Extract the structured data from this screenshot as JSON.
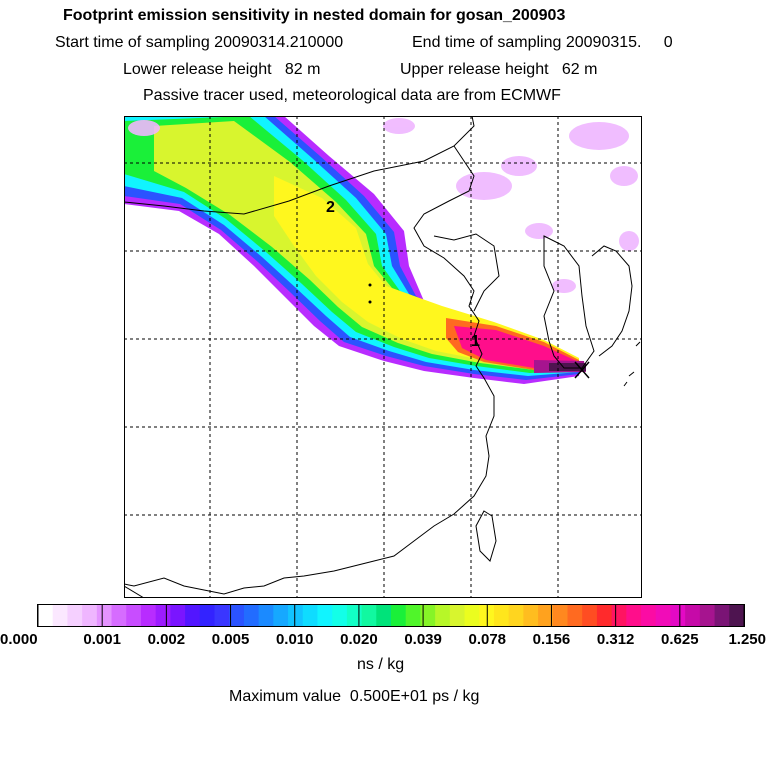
{
  "header": {
    "title": "Footprint emission sensitivity in nested domain for gosan_200903",
    "start_label": "Start time of sampling 20090314.210000",
    "end_label": "End time of sampling 20090315.     0",
    "lower_release": "Lower release height   82 m",
    "upper_release": "Upper release height   62 m",
    "tracer_note": "Passive tracer used, meteorological data are from ECMWF"
  },
  "map": {
    "labels": [
      "1",
      "2"
    ],
    "receptor_marker": "x"
  },
  "colorbar": {
    "tick_labels": [
      "0.000",
      "0.001",
      "0.002",
      "0.005",
      "0.010",
      "0.020",
      "0.039",
      "0.078",
      "0.156",
      "0.312",
      "0.625",
      "1.250"
    ],
    "colors": [
      "#ffffff",
      "#fbe8ff",
      "#f5d0ff",
      "#efb6ff",
      "#e493ff",
      "#d66cff",
      "#c84dff",
      "#b82cff",
      "#9d1cff",
      "#7a15ff",
      "#5216ff",
      "#3323ff",
      "#3a36ff",
      "#2b53ff",
      "#226cff",
      "#1b8aff",
      "#16a8ff",
      "#12c3ff",
      "#0fdcff",
      "#11f4ff",
      "#13ffe8",
      "#12ffc6",
      "#11f8a0",
      "#00e37a",
      "#1af039",
      "#50f52a",
      "#86f427",
      "#b7f728",
      "#d8f52e",
      "#ebfd1f",
      "#fff71e",
      "#ffe61c",
      "#ffd51f",
      "#ffbd1f",
      "#ffa21e",
      "#ff881f",
      "#ff6a20",
      "#ff4d22",
      "#ff2a2c",
      "#ff1461",
      "#ff0e8b",
      "#fb0ca4",
      "#f10cb8",
      "#e409c5",
      "#c60aa8",
      "#a6148f",
      "#7a1475",
      "#4e1450"
    ],
    "units": "ns / kg",
    "max_value_label": "Maximum value  0.500E+01 ps / kg"
  }
}
